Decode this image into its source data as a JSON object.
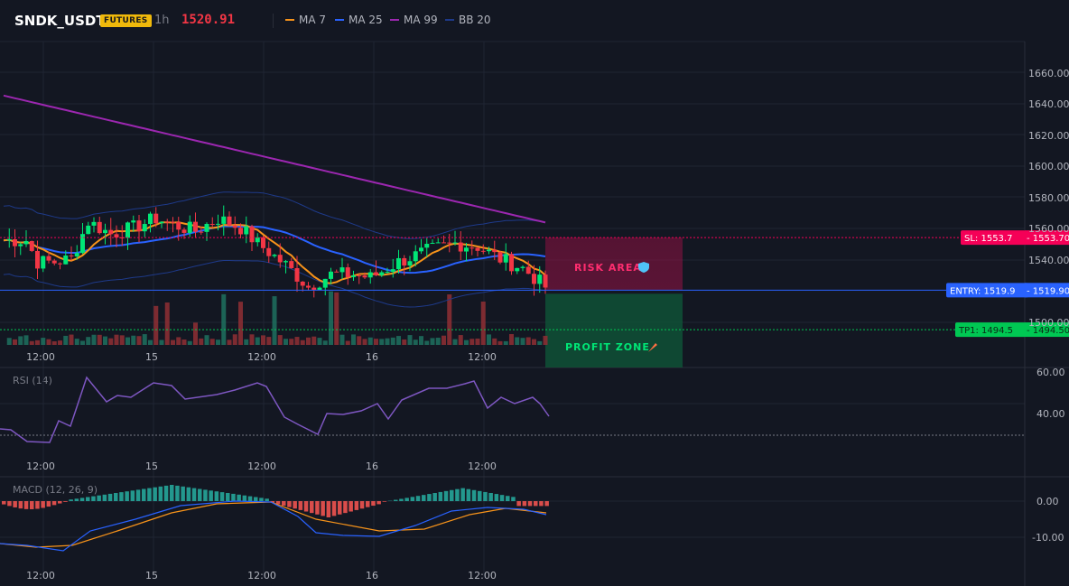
{
  "header": {
    "symbol": "SNDK_USDT",
    "market_badge": "FUTURES",
    "timeframe": "1h",
    "last_price": "1520.91"
  },
  "legend": [
    {
      "label": "MA 7",
      "color": "#f7931a"
    },
    {
      "label": "MA 25",
      "color": "#2962ff"
    },
    {
      "label": "MA 99",
      "color": "#9c27b0"
    },
    {
      "label": "BB 20",
      "color": "#1e3a8a"
    }
  ],
  "price_axis": {
    "ticks": [
      "1660.00",
      "1640.00",
      "1620.00",
      "1600.00",
      "1580.00",
      "1560.00",
      "1540.00",
      "1500.00"
    ]
  },
  "time_axis": {
    "ticks": [
      "12:00",
      "15",
      "12:00",
      "16",
      "12:00"
    ]
  },
  "levels": {
    "sl_tag": "SL: 1553.7",
    "sl_value": "1553.70",
    "entry_tag": "ENTRY: 1519.9",
    "entry_value": "1519.90",
    "tp_tag": "TP1: 1494.5",
    "tp_value": "1494.50"
  },
  "zones": {
    "risk_label": "RISK AREA",
    "risk_icon": "shield-icon",
    "profit_label": "PROFIT ZONE",
    "profit_icon": "rocket-icon"
  },
  "rsi": {
    "label": "RSI (14)",
    "ticks": [
      "60.00",
      "40.00"
    ]
  },
  "macd": {
    "label": "MACD (12, 26, 9)",
    "ticks": [
      "0.00",
      "-10.00"
    ]
  },
  "colors": {
    "up": "#26a69a",
    "up_bright": "#00e676",
    "down": "#f23645",
    "risk": "#f50057",
    "entry": "#2962ff",
    "profit": "#00c853",
    "rsi_line": "#7e57c2"
  }
}
